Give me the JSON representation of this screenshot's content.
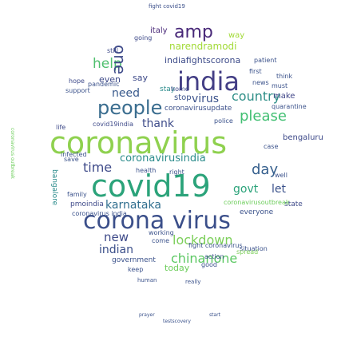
{
  "words": [
    {
      "text": "coronavirus",
      "color": "#8fd14f"
    },
    {
      "text": "covid19",
      "color": "#2ba37a"
    },
    {
      "text": "corona virus",
      "color": "#3b4f8a"
    },
    {
      "text": "india",
      "color": "#433e85"
    },
    {
      "text": "people",
      "color": "#3a6d8f"
    },
    {
      "text": "amp",
      "color": "#482878"
    },
    {
      "text": "time",
      "color": "#3e4a89"
    },
    {
      "text": "lockdown",
      "color": "#7ccf5a"
    },
    {
      "text": "karnataka",
      "color": "#2f6e8e"
    },
    {
      "text": "please",
      "color": "#41bf72"
    },
    {
      "text": "virus",
      "color": "#3b528b"
    },
    {
      "text": "country",
      "color": "#2f8f88"
    },
    {
      "text": "day",
      "color": "#355f8d"
    },
    {
      "text": "coronavirusindia",
      "color": "#2c8c8c"
    },
    {
      "text": "chinanone",
      "color": "#5cc863"
    },
    {
      "text": "help",
      "color": "#4fbf6e"
    },
    {
      "text": "indiafightscorona",
      "color": "#3e4c8a"
    },
    {
      "text": "govt",
      "color": "#2ba37a"
    },
    {
      "text": "let",
      "color": "#3b528b"
    },
    {
      "text": "new",
      "color": "#3e4a89"
    },
    {
      "text": "indian",
      "color": "#3b4f8a"
    },
    {
      "text": "need",
      "color": "#38598c"
    },
    {
      "text": "thank",
      "color": "#3e4c8a"
    },
    {
      "text": "stop",
      "color": "#3b528b"
    },
    {
      "text": "one",
      "color": "#3e4a89"
    },
    {
      "text": "narendramodi",
      "color": "#a2da37"
    },
    {
      "text": "make",
      "color": "#404688"
    },
    {
      "text": "even",
      "color": "#3e4a89"
    },
    {
      "text": "say",
      "color": "#3e4a89"
    },
    {
      "text": "bengaluru",
      "color": "#3e4a89"
    },
    {
      "text": "today",
      "color": "#6ccd5a"
    },
    {
      "text": "government",
      "color": "#3b528b"
    },
    {
      "text": "state",
      "color": "#3e4a89"
    },
    {
      "text": "everyone",
      "color": "#3b528b"
    },
    {
      "text": "coronavirusupdate",
      "color": "#3b4f8a"
    },
    {
      "text": "quarantine",
      "color": "#3b528b"
    },
    {
      "text": "coronavirusoutbreak",
      "color": "#6ccd5a"
    },
    {
      "text": "covid19india",
      "color": "#3e4a89"
    },
    {
      "text": "italy",
      "color": "#482878"
    },
    {
      "text": "way",
      "color": "#a2da37"
    },
    {
      "text": "fight covid19",
      "color": "#3b4f8a"
    },
    {
      "text": "pmoindia",
      "color": "#3e4a89"
    },
    {
      "text": "bangalore",
      "color": "#2c8c8c"
    },
    {
      "text": "stay",
      "color": "#2c8c8c"
    },
    {
      "text": "home",
      "color": "#3e4a89"
    },
    {
      "text": "think",
      "color": "#3b528b"
    },
    {
      "text": "must",
      "color": "#3b528b"
    },
    {
      "text": "first",
      "color": "#3b528b"
    },
    {
      "text": "well",
      "color": "#3b528b"
    },
    {
      "text": "case",
      "color": "#3b528b"
    },
    {
      "text": "hope",
      "color": "#3e4a89"
    },
    {
      "text": "pandemic",
      "color": "#3b528b"
    },
    {
      "text": "support",
      "color": "#3b528b"
    },
    {
      "text": "still",
      "color": "#3e4a89"
    },
    {
      "text": "going",
      "color": "#3e4a89"
    },
    {
      "text": "infected",
      "color": "#3b528b"
    },
    {
      "text": "health",
      "color": "#3b528b"
    },
    {
      "text": "right",
      "color": "#3b528b"
    },
    {
      "text": "family",
      "color": "#3b528b"
    },
    {
      "text": "situation",
      "color": "#3b528b"
    },
    {
      "text": "come",
      "color": "#3b528b"
    },
    {
      "text": "working",
      "color": "#3b528b"
    },
    {
      "text": "keep",
      "color": "#3b528b"
    },
    {
      "text": "good",
      "color": "#3b528b"
    },
    {
      "text": "spread",
      "color": "#7ccf5a"
    },
    {
      "text": "human",
      "color": "#3b528b"
    },
    {
      "text": "really",
      "color": "#3b528b"
    },
    {
      "text": "testscovery",
      "color": "#3b528b"
    },
    {
      "text": "start",
      "color": "#3b528b"
    },
    {
      "text": "prayer",
      "color": "#3b528b"
    },
    {
      "text": "coronavirus outbreak",
      "color": "#6ccd5a"
    },
    {
      "text": "news",
      "color": "#3b528b"
    },
    {
      "text": "fight coronavirus",
      "color": "#3b528b"
    },
    {
      "text": "coronavirus india",
      "color": "#3b528b"
    },
    {
      "text": "life",
      "color": "#3e4a89"
    },
    {
      "text": "save",
      "color": "#3b528b"
    },
    {
      "text": "patient",
      "color": "#3b528b"
    },
    {
      "text": "action",
      "color": "#3b528b"
    },
    {
      "text": "police",
      "color": "#3b528b"
    }
  ]
}
